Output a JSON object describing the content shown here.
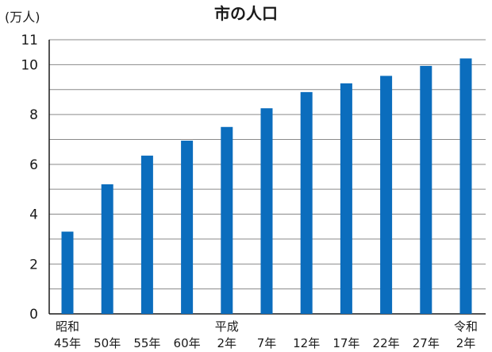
{
  "chart_data": {
    "type": "bar",
    "title": "市の人口",
    "ylabel": "(万人)",
    "xlabel": "",
    "categories": [
      [
        "昭和",
        "45年"
      ],
      [
        "",
        "50年"
      ],
      [
        "",
        "55年"
      ],
      [
        "",
        "60年"
      ],
      [
        "平成",
        "2年"
      ],
      [
        "",
        "7年"
      ],
      [
        "",
        "12年"
      ],
      [
        "",
        "17年"
      ],
      [
        "",
        "22年"
      ],
      [
        "",
        "27年"
      ],
      [
        "令和",
        "2年"
      ]
    ],
    "values": [
      3.3,
      5.2,
      6.35,
      6.95,
      7.5,
      8.25,
      8.9,
      9.25,
      9.55,
      9.95,
      10.25
    ],
    "ylim": [
      0,
      11
    ],
    "yticks": [
      {
        "value": 0,
        "label": "0"
      },
      {
        "value": 2,
        "label": "2"
      },
      {
        "value": 4,
        "label": "4"
      },
      {
        "value": 6,
        "label": "6"
      },
      {
        "value": 8,
        "label": "8"
      },
      {
        "value": 10,
        "label": "10"
      },
      {
        "value": 11,
        "label": "11"
      }
    ],
    "minor_gridlines": [
      1,
      3,
      5,
      7,
      9,
      10,
      11
    ],
    "grid": true,
    "bar_color": "#0b6dbd"
  }
}
